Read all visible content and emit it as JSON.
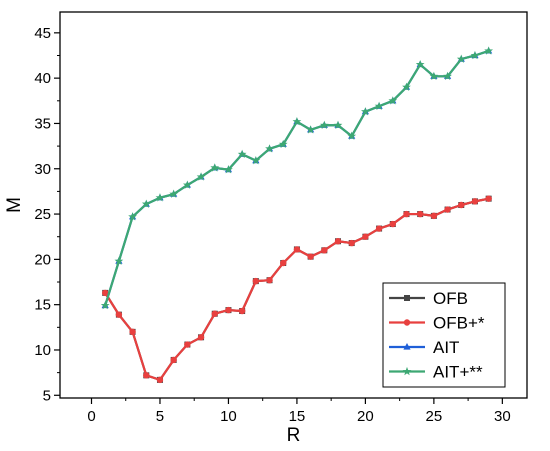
{
  "chart_data": {
    "type": "line",
    "title": "",
    "xlabel": "R",
    "ylabel": "M",
    "xlim": [
      -2.3,
      31.8
    ],
    "ylim": [
      4.7,
      47.3
    ],
    "xticks": [
      "0",
      "5",
      "10",
      "15",
      "20",
      "25",
      "30"
    ],
    "xtick_values": [
      0,
      5,
      10,
      15,
      20,
      25,
      30
    ],
    "yticks": [
      "5",
      "10",
      "15",
      "20",
      "25",
      "30",
      "35",
      "40",
      "45"
    ],
    "ytick_values": [
      5,
      10,
      15,
      20,
      25,
      30,
      35,
      40,
      45
    ],
    "grid": false,
    "legend_position": "bottom-right",
    "series": [
      {
        "name": "OFB",
        "color": "#444444",
        "marker": "square",
        "x": [
          1,
          2,
          3,
          4,
          5,
          6,
          7,
          8,
          9,
          10,
          11,
          12,
          13,
          14,
          15,
          16,
          17,
          18,
          19,
          20,
          21,
          22,
          23,
          24,
          25,
          26,
          27,
          28,
          29
        ],
        "y": [
          16.3,
          13.9,
          12.0,
          7.2,
          6.7,
          8.9,
          10.6,
          11.4,
          14.0,
          14.4,
          14.3,
          17.6,
          17.7,
          19.6,
          21.1,
          20.3,
          21.0,
          22.0,
          21.8,
          22.5,
          23.4,
          23.9,
          25.0,
          25.0,
          24.8,
          25.5,
          26.0,
          26.4,
          26.7
        ]
      },
      {
        "name": "OFB+*",
        "color": "#e8403f",
        "marker": "circle",
        "x": [
          1,
          2,
          3,
          4,
          5,
          6,
          7,
          8,
          9,
          10,
          11,
          12,
          13,
          14,
          15,
          16,
          17,
          18,
          19,
          20,
          21,
          22,
          23,
          24,
          25,
          26,
          27,
          28,
          29
        ],
        "y": [
          16.3,
          13.9,
          12.0,
          7.2,
          6.7,
          8.9,
          10.6,
          11.4,
          14.0,
          14.4,
          14.3,
          17.6,
          17.7,
          19.6,
          21.1,
          20.3,
          21.0,
          22.0,
          21.8,
          22.5,
          23.4,
          23.9,
          25.0,
          25.0,
          24.8,
          25.5,
          26.0,
          26.4,
          26.7
        ]
      },
      {
        "name": "AIT",
        "color": "#1f5fd8",
        "marker": "triangle",
        "x": [
          1,
          2,
          3,
          4,
          5,
          6,
          7,
          8,
          9,
          10,
          11,
          12,
          13,
          14,
          15,
          16,
          17,
          18,
          19,
          20,
          21,
          22,
          23,
          24,
          25,
          26,
          27,
          28,
          29
        ],
        "y": [
          14.9,
          19.8,
          24.7,
          26.1,
          26.8,
          27.2,
          28.2,
          29.1,
          30.1,
          29.9,
          31.6,
          30.9,
          32.2,
          32.7,
          35.2,
          34.3,
          34.8,
          34.8,
          33.6,
          36.3,
          36.9,
          37.5,
          39.0,
          41.5,
          40.2,
          40.2,
          42.1,
          42.5,
          43.0
        ]
      },
      {
        "name": "AIT+**",
        "color": "#3da873",
        "marker": "star",
        "x": [
          1,
          2,
          3,
          4,
          5,
          6,
          7,
          8,
          9,
          10,
          11,
          12,
          13,
          14,
          15,
          16,
          17,
          18,
          19,
          20,
          21,
          22,
          23,
          24,
          25,
          26,
          27,
          28,
          29
        ],
        "y": [
          14.9,
          19.8,
          24.7,
          26.1,
          26.8,
          27.2,
          28.2,
          29.1,
          30.1,
          29.9,
          31.6,
          30.9,
          32.2,
          32.7,
          35.2,
          34.3,
          34.8,
          34.8,
          33.6,
          36.3,
          36.9,
          37.5,
          39.0,
          41.5,
          40.2,
          40.2,
          42.1,
          42.5,
          43.0
        ]
      }
    ]
  }
}
